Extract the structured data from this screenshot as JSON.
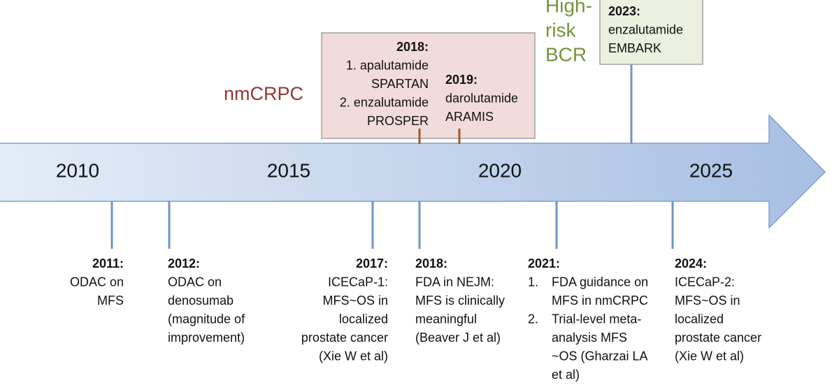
{
  "labels": {
    "nmcrpc": "nmCRPC",
    "high_risk_bcr": [
      "High-",
      "risk",
      "BCR"
    ]
  },
  "axis_years": [
    "2010",
    "2015",
    "2020",
    "2025"
  ],
  "upper_events": [
    {
      "year": "2018:",
      "lines": [
        "1. apalutamide",
        "SPARTAN",
        "2. enzalutamide",
        "PROSPER"
      ]
    },
    {
      "year": "2019:",
      "lines": [
        "darolutamide",
        "ARAMIS"
      ]
    },
    {
      "year": "2023:",
      "lines": [
        "enzalutamide",
        "EMBARK"
      ]
    }
  ],
  "lower_events": [
    {
      "year": "2011:",
      "lines": [
        "ODAC on",
        "MFS"
      ]
    },
    {
      "year": "2012:",
      "lines": [
        "ODAC on",
        "denosumab",
        "(magnitude of",
        "improvement)"
      ]
    },
    {
      "year": "2017:",
      "lines": [
        "ICECaP-1:",
        "MFS~OS in",
        "localized",
        "prostate cancer",
        "(Xie W et al)"
      ]
    },
    {
      "year": "2018:",
      "lines": [
        "FDA in NEJM:",
        "MFS is clinically",
        "meaningful",
        "(Beaver J et al)"
      ]
    },
    {
      "year": "2021:",
      "items": [
        {
          "marker": "1.",
          "lines": [
            "FDA guidance on",
            "MFS in nmCRPC"
          ]
        },
        {
          "marker": "2.",
          "lines": [
            "Trial-level meta-",
            "analysis MFS",
            "~OS (Gharzai LA",
            "et al)"
          ]
        }
      ]
    },
    {
      "year": "2024:",
      "lines": [
        "ICECaP-2:",
        "MFS~OS in",
        "localized",
        "prostate cancer",
        "(Xie W et al)"
      ]
    }
  ]
}
